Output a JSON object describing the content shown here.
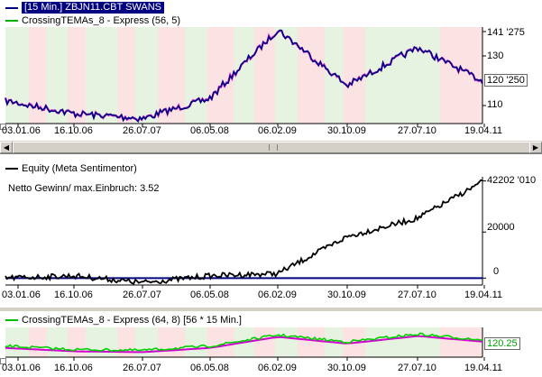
{
  "top_pane": {
    "legend_items": [
      {
        "label": "[15 Min.] ZBJN11.CBT SWANS",
        "color": "#000080"
      },
      {
        "label": "CrossingTEMAs_8 - Express  (56, 5)",
        "color": "#00b000"
      }
    ],
    "y_ticks": [
      "141 '275",
      "130",
      "110"
    ],
    "last_value_tag": "120 '250"
  },
  "equity_pane": {
    "legend_items": [
      {
        "label": "Equity (Meta Sentimentor)",
        "color": "#000000"
      }
    ],
    "subtitle": "Netto Gewinn/ max.Einbruch: 3.52",
    "y_ticks": [
      "42202 '010",
      "20000",
      "0"
    ]
  },
  "indicator_pane": {
    "legend_items": [
      {
        "label": "CrossingTEMAs_8 - Express  (64, 8) [56 * 15 Min.]",
        "color": "#00c000"
      }
    ],
    "last_value_tag": "120.25"
  },
  "x_dates": [
    "03.01.06",
    "16.10.06",
    "26.07.07",
    "06.05.08",
    "06.02.09",
    "30.10.09",
    "27.07.10",
    "19.04.11"
  ],
  "colors": {
    "band_long": "#e6f3e0",
    "band_short": "#fbe3e3",
    "price": "#000080",
    "price_accent": "#c000c0",
    "equity": "#000000",
    "baseline": "#000080",
    "tema_fast": "#00d000",
    "tema_slow": "#d000d0"
  },
  "chart_data": [
    {
      "type": "line",
      "title": "",
      "x": [
        "03.01.06",
        "16.10.06",
        "26.07.07",
        "06.05.08",
        "06.02.09",
        "30.10.09",
        "27.07.10",
        "19.04.11"
      ],
      "series": [
        {
          "name": "[15 Min.] ZBJN11.CBT SWANS",
          "values": [
            113,
            108,
            106,
            114,
            141,
            119,
            134,
            120.25
          ]
        }
      ],
      "ylim": [
        104,
        142
      ]
    },
    {
      "type": "line",
      "title": "",
      "x": [
        "03.01.06",
        "16.10.06",
        "26.07.07",
        "06.05.08",
        "06.02.09",
        "30.10.09",
        "27.07.10",
        "19.04.11"
      ],
      "series": [
        {
          "name": "Equity (Meta Sentimentor)",
          "values": [
            0,
            1000,
            -2000,
            1000,
            2000,
            18000,
            26000,
            42202
          ]
        }
      ],
      "ylim": [
        -3000,
        44000
      ]
    },
    {
      "type": "line",
      "title": "",
      "x": [
        "03.01.06",
        "16.10.06",
        "26.07.07",
        "06.05.08",
        "06.02.09",
        "30.10.09",
        "27.07.10",
        "19.04.11"
      ],
      "series": [
        {
          "name": "CrossingTEMAs_8 - Express  (64, 8) [56 * 15 Min.]",
          "values": [
            113,
            109,
            108,
            113,
            126,
            118,
            127,
            120.25
          ]
        }
      ],
      "ylim": [
        100,
        135
      ]
    }
  ]
}
